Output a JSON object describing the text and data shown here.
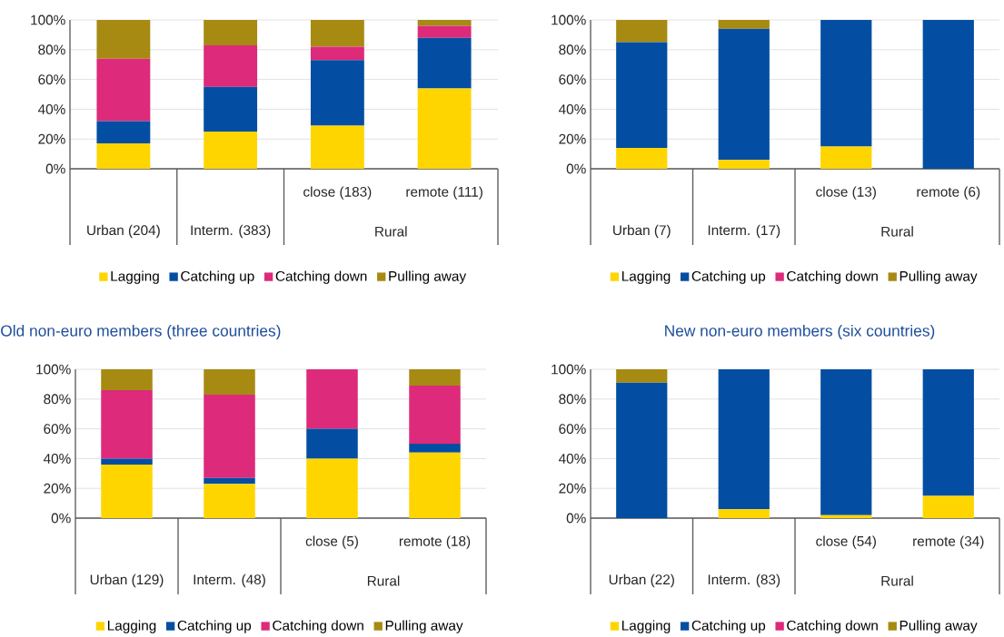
{
  "chart_data": [
    {
      "type": "bar",
      "stacked": true,
      "categories": [
        "Urban (204)",
        "Interm. (383)",
        "close (183)",
        "remote (111)"
      ],
      "annotations": [
        "Rural"
      ],
      "series": [
        {
          "name": "Lagging",
          "color": "#ffd500",
          "values": [
            17,
            25,
            29,
            54
          ]
        },
        {
          "name": "Catching up",
          "color": "#034ea2",
          "values": [
            15,
            30,
            44,
            34
          ]
        },
        {
          "name": "Catching down",
          "color": "#dd2a7b",
          "values": [
            42,
            28,
            9,
            8
          ]
        },
        {
          "name": "Pulling away",
          "color": "#a68a12",
          "values": [
            26,
            17,
            18,
            4
          ]
        }
      ],
      "ylim": [
        0,
        100
      ],
      "yticks": [
        {
          "value": 0,
          "label": "0%"
        },
        {
          "value": 20,
          "label": "20%"
        },
        {
          "value": 40,
          "label": "40%"
        },
        {
          "value": 60,
          "label": "60%"
        },
        {
          "value": 80,
          "label": "80%"
        },
        {
          "value": 100,
          "label": "100%"
        }
      ],
      "grid": "y",
      "legend": "bottom"
    },
    {
      "type": "bar",
      "stacked": true,
      "categories": [
        "Urban (7)",
        "Interm. (17)",
        "close (13)",
        "remote (6)"
      ],
      "annotations": [
        "Rural"
      ],
      "series": [
        {
          "name": "Lagging",
          "color": "#ffd500",
          "values": [
            14,
            6,
            15,
            0
          ]
        },
        {
          "name": "Catching up",
          "color": "#034ea2",
          "values": [
            71,
            88,
            85,
            100
          ]
        },
        {
          "name": "Catching down",
          "color": "#dd2a7b",
          "values": [
            0,
            0,
            0,
            0
          ]
        },
        {
          "name": "Pulling away",
          "color": "#a68a12",
          "values": [
            15,
            6,
            0,
            0
          ]
        }
      ],
      "ylim": [
        0,
        100
      ],
      "yticks": [
        {
          "value": 0,
          "label": "0%"
        },
        {
          "value": 20,
          "label": "20%"
        },
        {
          "value": 40,
          "label": "40%"
        },
        {
          "value": 60,
          "label": "60%"
        },
        {
          "value": 80,
          "label": "80%"
        },
        {
          "value": 100,
          "label": "100%"
        }
      ],
      "grid": "y",
      "legend": "bottom"
    },
    {
      "type": "bar",
      "stacked": true,
      "title": "Old non-euro members (three countries)",
      "categories": [
        "Urban (129)",
        "Interm. (48)",
        "close (5)",
        "remote (18)"
      ],
      "annotations": [
        "Rural"
      ],
      "series": [
        {
          "name": "Lagging",
          "color": "#ffd500",
          "values": [
            36,
            23,
            40,
            44
          ]
        },
        {
          "name": "Catching up",
          "color": "#034ea2",
          "values": [
            4,
            4,
            20,
            6
          ]
        },
        {
          "name": "Catching down",
          "color": "#dd2a7b",
          "values": [
            46,
            56,
            40,
            39
          ]
        },
        {
          "name": "Pulling away",
          "color": "#a68a12",
          "values": [
            14,
            17,
            0,
            11
          ]
        }
      ],
      "ylim": [
        0,
        100
      ],
      "yticks": [
        {
          "value": 0,
          "label": "0%"
        },
        {
          "value": 20,
          "label": "20%"
        },
        {
          "value": 40,
          "label": "40%"
        },
        {
          "value": 60,
          "label": "60%"
        },
        {
          "value": 80,
          "label": "80%"
        },
        {
          "value": 100,
          "label": "100%"
        }
      ],
      "grid": "y",
      "legend": "bottom"
    },
    {
      "type": "bar",
      "stacked": true,
      "title": "New non-euro members (six countries)",
      "categories": [
        "Urban (22)",
        "Interm. (83)",
        "close (54)",
        "remote (34)"
      ],
      "annotations": [
        "Rural"
      ],
      "series": [
        {
          "name": "Lagging",
          "color": "#ffd500",
          "values": [
            0,
            6,
            2,
            15
          ]
        },
        {
          "name": "Catching up",
          "color": "#034ea2",
          "values": [
            91,
            94,
            98,
            85
          ]
        },
        {
          "name": "Catching down",
          "color": "#dd2a7b",
          "values": [
            0,
            0,
            0,
            0
          ]
        },
        {
          "name": "Pulling away",
          "color": "#a68a12",
          "values": [
            9,
            0,
            0,
            0
          ]
        }
      ],
      "ylim": [
        0,
        100
      ],
      "yticks": [
        {
          "value": 0,
          "label": "0%"
        },
        {
          "value": 20,
          "label": "20%"
        },
        {
          "value": 40,
          "label": "40%"
        },
        {
          "value": 60,
          "label": "60%"
        },
        {
          "value": 80,
          "label": "80%"
        },
        {
          "value": 100,
          "label": "100%"
        }
      ],
      "grid": "y",
      "legend": "bottom"
    }
  ]
}
